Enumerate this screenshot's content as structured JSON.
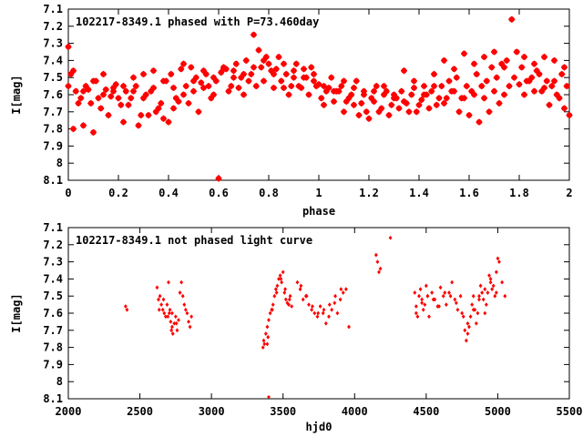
{
  "chart_data": [
    {
      "type": "scatter",
      "title": "102217-8349.1 phased with P=73.460day",
      "xlabel": "phase",
      "ylabel": "I[mag]",
      "xlim": [
        0,
        2
      ],
      "ylim": [
        8.1,
        7.1
      ],
      "y_inverted": true,
      "xticks": [
        "0",
        "0.2",
        "0.4",
        "0.6",
        "0.8",
        "1",
        "1.2",
        "1.4",
        "1.6",
        "1.8",
        "2"
      ],
      "yticks": [
        "7.1",
        "7.2",
        "7.3",
        "7.4",
        "7.5",
        "7.6",
        "7.7",
        "7.8",
        "7.9",
        "8",
        "8.1"
      ],
      "grid": false,
      "marker": "star",
      "color": "#ff0000",
      "series": [
        {
          "x": [
            0.0,
            0.01,
            0.03,
            0.05,
            0.07,
            0.09,
            0.11,
            0.13,
            0.15,
            0.17,
            0.19,
            0.21,
            0.23,
            0.25,
            0.27,
            0.29,
            0.31,
            0.33,
            0.35,
            0.37,
            0.39,
            0.41,
            0.43,
            0.45,
            0.47,
            0.49,
            0.51,
            0.53,
            0.55,
            0.57,
            0.59,
            0.6,
            0.61,
            0.63,
            0.65,
            0.67,
            0.69,
            0.71,
            0.73,
            0.74,
            0.75,
            0.77,
            0.79,
            0.81,
            0.83,
            0.85,
            0.87,
            0.89,
            0.91,
            0.93,
            0.95,
            0.97,
            0.99,
            1.01,
            1.03,
            1.05,
            1.07,
            1.09,
            1.11,
            1.13,
            1.15,
            1.17,
            1.19,
            1.21,
            1.23,
            1.25,
            1.27,
            1.29,
            1.31,
            1.33,
            1.35,
            1.37,
            1.39,
            1.41,
            1.43,
            1.45,
            1.47,
            1.49,
            1.51,
            1.53,
            1.55,
            1.57,
            1.59,
            1.61,
            1.63,
            1.65,
            1.67,
            1.69,
            1.71,
            1.73,
            1.75,
            1.77,
            1.78,
            1.79,
            1.81,
            1.83,
            1.85,
            1.87,
            1.89,
            1.91,
            1.93,
            1.95,
            1.97,
            1.99,
            0.0,
            0.02,
            0.04,
            0.06,
            0.08,
            0.1,
            0.12,
            0.14,
            0.16,
            0.18,
            0.2,
            0.22,
            0.24,
            0.26,
            0.28,
            0.3,
            0.32,
            0.34,
            0.36,
            0.38,
            0.4,
            0.42,
            0.44,
            0.46,
            0.48,
            0.5,
            0.52,
            0.54,
            0.56,
            0.58,
            0.62,
            0.64,
            0.66,
            0.68,
            0.7,
            0.72,
            0.76,
            0.78,
            0.8,
            0.82,
            0.84,
            0.86,
            0.88,
            0.9,
            0.92,
            0.94,
            0.96,
            0.98,
            1.0,
            1.02,
            1.04,
            1.06,
            1.08,
            1.1,
            1.12,
            1.14,
            1.16,
            1.18,
            1.2,
            1.22,
            1.24,
            1.26,
            1.28,
            1.3,
            1.32,
            1.34,
            1.36,
            1.38,
            1.4,
            1.42,
            1.44,
            1.46,
            1.48,
            1.5,
            1.52,
            1.54,
            1.56,
            1.58,
            1.6,
            1.62,
            1.64,
            1.66,
            1.68,
            1.7,
            1.72,
            1.74,
            1.76,
            1.8,
            1.82,
            1.84,
            1.86,
            1.88,
            1.9,
            1.92,
            1.94,
            1.96,
            1.98,
            2.0,
            0.02,
            0.06,
            0.1,
            0.14,
            0.18,
            0.22,
            0.26,
            0.3,
            0.34,
            0.38,
            0.42,
            0.46,
            0.5,
            0.54,
            0.58,
            0.62,
            0.66,
            0.7,
            0.74,
            0.78,
            0.82,
            0.86,
            0.9,
            0.94,
            0.98,
            1.02,
            1.06,
            1.1,
            1.14,
            1.18,
            1.22,
            1.26,
            1.3,
            1.34,
            1.38,
            1.42,
            1.46,
            1.5,
            1.54,
            1.58,
            1.62,
            1.66,
            1.7,
            1.74,
            1.82,
            1.86,
            1.9,
            1.94,
            1.98
          ],
          "y": [
            7.32,
            7.48,
            7.58,
            7.62,
            7.55,
            7.65,
            7.52,
            7.68,
            7.57,
            7.61,
            7.54,
            7.66,
            7.58,
            7.62,
            7.55,
            7.72,
            7.6,
            7.58,
            7.7,
            7.65,
            7.52,
            7.48,
            7.62,
            7.45,
            7.55,
            7.44,
            7.5,
            7.53,
            7.48,
            7.62,
            7.52,
            8.09,
            7.47,
            7.45,
            7.55,
            7.42,
            7.5,
            7.4,
            7.48,
            7.25,
            7.55,
            7.44,
            7.38,
            7.46,
            7.45,
            7.52,
            7.48,
            7.55,
            7.42,
            7.56,
            7.5,
            7.44,
            7.55,
            7.62,
            7.58,
            7.5,
            7.58,
            7.55,
            7.64,
            7.6,
            7.52,
            7.65,
            7.7,
            7.62,
            7.55,
            7.68,
            7.58,
            7.66,
            7.62,
            7.58,
            7.65,
            7.6,
            7.7,
            7.63,
            7.6,
            7.58,
            7.66,
            7.55,
            7.62,
            7.58,
            7.5,
            7.62,
            7.55,
            7.58,
            7.48,
            7.55,
            7.52,
            7.44,
            7.5,
            7.42,
            7.4,
            7.16,
            7.5,
            7.35,
            7.44,
            7.52,
            7.5,
            7.46,
            7.58,
            7.52,
            7.55,
            7.6,
            7.48,
            7.55,
            7.55,
            7.8,
            7.65,
            7.78,
            7.57,
            7.82,
            7.62,
            7.48,
            7.72,
            7.58,
            7.62,
            7.76,
            7.66,
            7.58,
            7.78,
            7.62,
            7.72,
            7.56,
            7.68,
            7.74,
            7.76,
            7.68,
            7.64,
            7.6,
            7.65,
            7.58,
            7.7,
            7.56,
            7.55,
            7.6,
            7.45,
            7.58,
            7.5,
            7.56,
            7.6,
            7.52,
            7.34,
            7.52,
            7.42,
            7.56,
            7.38,
            7.56,
            7.6,
            7.5,
            7.55,
            7.45,
            7.6,
            7.52,
            7.54,
            7.66,
            7.56,
            7.64,
            7.58,
            7.7,
            7.62,
            7.66,
            7.72,
            7.58,
            7.74,
            7.64,
            7.7,
            7.6,
            7.72,
            7.62,
            7.68,
            7.64,
            7.7,
            7.56,
            7.66,
            7.6,
            7.68,
            7.55,
            7.62,
            7.65,
            7.52,
            7.58,
            7.7,
            7.62,
            7.72,
            7.6,
            7.76,
            7.62,
            7.7,
            7.58,
            7.65,
            7.6,
            7.55,
            7.54,
            7.6,
            7.52,
            7.58,
            7.48,
            7.56,
            7.66,
            7.52,
            7.62,
            7.68,
            7.72,
            7.46,
            7.58,
            7.52,
            7.6,
            7.56,
            7.55,
            7.5,
            7.48,
            7.46,
            7.52,
            7.56,
            7.42,
            7.52,
            7.46,
            7.5,
            7.44,
            7.46,
            7.48,
            7.44,
            7.4,
            7.48,
            7.42,
            7.46,
            7.5,
            7.48,
            7.55,
            7.58,
            7.52,
            7.56,
            7.6,
            7.58,
            7.55,
            7.6,
            7.46,
            7.52,
            7.55,
            7.48,
            7.4,
            7.45,
            7.36,
            7.42,
            7.38,
            7.35,
            7.44,
            7.38,
            7.42,
            7.38,
            7.4,
            7.44
          ]
        }
      ]
    },
    {
      "type": "scatter",
      "title": "102217-8349.1 not phased light curve",
      "xlabel": "hjd0",
      "ylabel": "I[mag]",
      "xlim": [
        2000,
        5500
      ],
      "ylim": [
        8.1,
        7.1
      ],
      "y_inverted": true,
      "xticks": [
        "2000",
        "2500",
        "3000",
        "3500",
        "4000",
        "4500",
        "5000",
        "5500"
      ],
      "yticks": [
        "7.1",
        "7.2",
        "7.3",
        "7.4",
        "7.5",
        "7.6",
        "7.7",
        "7.8",
        "7.9",
        "8",
        "8.1"
      ],
      "grid": false,
      "marker": "diamond",
      "color": "#ff0000",
      "series": [
        {
          "x": [
            2400,
            2410,
            2620,
            2630,
            2640,
            2650,
            2660,
            2670,
            2680,
            2690,
            2700,
            2705,
            2710,
            2715,
            2720,
            2725,
            2730,
            2740,
            2750,
            2760,
            2770,
            2780,
            2790,
            2800,
            2810,
            2820,
            2830,
            2840,
            2850,
            2860,
            3360,
            3365,
            3370,
            3380,
            3390,
            3400,
            3410,
            3420,
            3430,
            3440,
            3450,
            3460,
            3470,
            3480,
            3490,
            3500,
            3510,
            3520,
            3530,
            3540,
            3550,
            3560,
            3600,
            3620,
            3640,
            3660,
            3680,
            3700,
            3720,
            3740,
            3760,
            3780,
            3800,
            3820,
            3840,
            3860,
            3880,
            3900,
            3920,
            3940,
            3960,
            4150,
            4160,
            4170,
            4180,
            4250,
            4420,
            4430,
            4440,
            4450,
            4460,
            4470,
            4480,
            4490,
            4500,
            4510,
            4520,
            4540,
            4560,
            4580,
            4600,
            4620,
            4640,
            4660,
            4680,
            4700,
            4720,
            4740,
            4760,
            4770,
            4780,
            4790,
            4800,
            4810,
            4820,
            4830,
            4840,
            4850,
            4860,
            4870,
            4880,
            4890,
            4900,
            4910,
            4920,
            4930,
            4940,
            4950,
            4960,
            4970,
            4980,
            4990,
            5000,
            5010,
            5030,
            5050,
            3390,
            4430,
            4470,
            4510,
            4550,
            4590,
            4630,
            4670,
            4710,
            4750,
            4790,
            4830,
            4870,
            4910,
            4950,
            4990,
            2635,
            2665,
            2695,
            2725,
            2755,
            3395,
            3425,
            3455,
            3485,
            3515,
            3545,
            3625,
            3665,
            3705,
            3745,
            3785,
            3825,
            3865,
            3905
          ],
          "y": [
            7.56,
            7.58,
            7.45,
            7.52,
            7.5,
            7.55,
            7.58,
            7.6,
            7.62,
            7.55,
            7.42,
            7.6,
            7.58,
            7.65,
            7.7,
            7.68,
            7.72,
            7.66,
            7.62,
            7.7,
            7.64,
            7.48,
            7.42,
            7.5,
            7.55,
            7.58,
            7.6,
            7.65,
            7.68,
            7.62,
            7.8,
            7.76,
            7.78,
            7.72,
            7.68,
            7.64,
            7.6,
            7.58,
            7.55,
            7.5,
            7.46,
            7.44,
            7.4,
            7.38,
            7.42,
            7.36,
            7.48,
            7.52,
            7.54,
            7.55,
            7.5,
            7.56,
            7.42,
            7.46,
            7.52,
            7.5,
            7.55,
            7.58,
            7.6,
            7.62,
            7.56,
            7.6,
            7.66,
            7.62,
            7.58,
            7.54,
            7.6,
            7.52,
            7.48,
            7.46,
            7.68,
            7.26,
            7.3,
            7.36,
            7.34,
            7.16,
            7.48,
            7.56,
            7.62,
            7.5,
            7.46,
            7.52,
            7.58,
            7.55,
            7.44,
            7.5,
            7.62,
            7.48,
            7.52,
            7.56,
            7.45,
            7.5,
            7.55,
            7.48,
            7.42,
            7.52,
            7.58,
            7.5,
            7.62,
            7.7,
            7.76,
            7.72,
            7.68,
            7.62,
            7.55,
            7.5,
            7.58,
            7.66,
            7.6,
            7.5,
            7.44,
            7.48,
            7.52,
            7.6,
            7.55,
            7.48,
            7.38,
            7.42,
            7.46,
            7.44,
            7.5,
            7.36,
            7.28,
            7.3,
            7.42,
            7.5,
            7.78,
            7.6,
            7.54,
            7.5,
            7.52,
            7.56,
            7.48,
            7.5,
            7.54,
            7.6,
            7.66,
            7.58,
            7.52,
            7.46,
            7.4,
            7.48,
            7.58,
            7.52,
            7.62,
            7.6,
            7.66,
            7.74,
            7.58,
            7.48,
            7.4,
            7.46,
            7.52,
            7.44,
            7.5,
            7.56,
            7.6,
            7.58,
            7.55,
            7.5,
            7.46
          ]
        }
      ],
      "outliers_bottom": [
        3400
      ]
    }
  ]
}
